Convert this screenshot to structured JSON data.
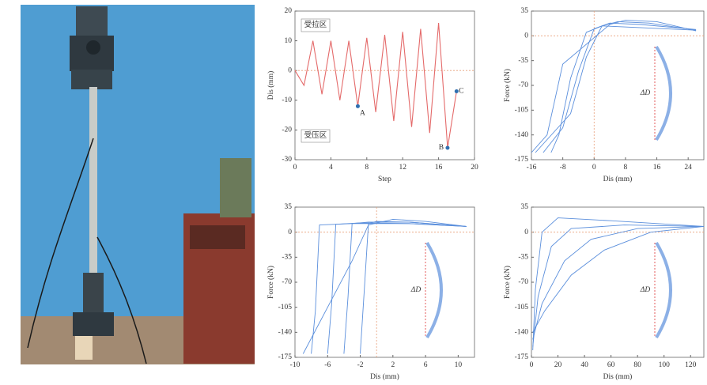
{
  "chart_data": [
    {
      "type": "line",
      "xlabel": "Step",
      "ylabel": "Dis (mm)",
      "color": "#e46a6a",
      "xlim": [
        0,
        20
      ],
      "xticks": [
        0,
        4,
        8,
        12,
        16,
        20
      ],
      "ylim": [
        -30,
        20
      ],
      "yticks": [
        -30,
        -20,
        -10,
        0,
        10,
        20
      ],
      "x": [
        0,
        1,
        2,
        3,
        4,
        5,
        6,
        7,
        8,
        9,
        10,
        11,
        12,
        13,
        14,
        15,
        16,
        17,
        18
      ],
      "values": [
        0,
        -5,
        10,
        -8,
        10,
        -10,
        10,
        -12,
        11,
        -14,
        12,
        -17,
        13,
        -19,
        14,
        -21,
        16,
        -26,
        -7
      ],
      "reference_lines": {
        "y": 0
      },
      "points": [
        {
          "label": "A",
          "x": 7,
          "y": -12
        },
        {
          "label": "B",
          "x": 17,
          "y": -26
        },
        {
          "label": "C",
          "x": 18,
          "y": -7
        }
      ],
      "point_color": "#2f6fb0",
      "annotations": [
        "受拉区",
        "受压区"
      ]
    },
    {
      "type": "hysteresis",
      "xlabel": "Dis (mm)",
      "ylabel": "Force (kN)",
      "color": "#5b8fdc",
      "xlim": [
        -16,
        28
      ],
      "xticks": [
        -16,
        -8,
        0,
        8,
        16,
        24
      ],
      "ylim": [
        -175,
        35
      ],
      "yticks": [
        -175,
        -140,
        -105,
        -70,
        -35,
        0,
        35
      ],
      "reference_lines": {
        "x": 0,
        "y": 0
      },
      "inset_label": "ΔD",
      "series": [
        {
          "x": [
            26,
            10,
            2,
            -2,
            -6,
            -9,
            -11
          ],
          "values": [
            8,
            12,
            14,
            5,
            -60,
            -140,
            -165
          ]
        },
        {
          "x": [
            26,
            12,
            4,
            0,
            -4,
            -8,
            -13
          ],
          "values": [
            9,
            16,
            18,
            10,
            -50,
            -130,
            -165
          ]
        },
        {
          "x": [
            26,
            14,
            6,
            2,
            -2,
            -6,
            -15
          ],
          "values": [
            8,
            18,
            20,
            14,
            -30,
            -110,
            -165
          ]
        },
        {
          "x": [
            26,
            16,
            8,
            4,
            -8,
            -12,
            -16
          ],
          "values": [
            7,
            20,
            22,
            16,
            -40,
            -140,
            -165
          ]
        }
      ]
    },
    {
      "type": "hysteresis",
      "xlabel": "Dis (mm)",
      "ylabel": "Force (kN)",
      "color": "#5b8fdc",
      "xlim": [
        -10,
        12
      ],
      "xticks": [
        -10,
        -6,
        -2,
        2,
        6,
        10
      ],
      "ylim": [
        -175,
        35
      ],
      "yticks": [
        -175,
        -140,
        -105,
        -70,
        -35,
        0,
        35
      ],
      "reference_lines": {
        "x": 0,
        "y": 0
      },
      "inset_label": "ΔD",
      "series": [
        {
          "x": [
            11,
            4,
            0,
            -1,
            -1.5,
            -2
          ],
          "values": [
            8,
            14,
            15,
            12,
            -80,
            -170
          ]
        },
        {
          "x": [
            11,
            4,
            -1,
            -3,
            -3.5,
            -4
          ],
          "values": [
            8,
            14,
            14,
            12,
            -90,
            -170
          ]
        },
        {
          "x": [
            11,
            4,
            -2,
            -5,
            -5.5,
            -6
          ],
          "values": [
            8,
            12,
            13,
            11,
            -100,
            -170
          ]
        },
        {
          "x": [
            11,
            4,
            -3,
            -7,
            -7.5,
            -8
          ],
          "values": [
            8,
            12,
            12,
            10,
            -110,
            -170
          ]
        },
        {
          "x": [
            11,
            6,
            2,
            -1,
            -3,
            -9
          ],
          "values": [
            8,
            15,
            18,
            10,
            -40,
            -170
          ]
        }
      ]
    },
    {
      "type": "hysteresis",
      "xlabel": "Dis (mm)",
      "ylabel": "Force (kN)",
      "color": "#5b8fdc",
      "xlim": [
        0,
        130
      ],
      "xticks": [
        0,
        20,
        40,
        60,
        80,
        100,
        120
      ],
      "ylim": [
        -175,
        35
      ],
      "yticks": [
        -175,
        -140,
        -105,
        -70,
        -35,
        0,
        35
      ],
      "reference_lines": {
        "y": 0
      },
      "inset_label": "ΔD",
      "series": [
        {
          "x": [
            1,
            3,
            8,
            20,
            60,
            130
          ],
          "values": [
            -165,
            -80,
            0,
            20,
            16,
            8
          ]
        },
        {
          "x": [
            1,
            5,
            15,
            30,
            70,
            130
          ],
          "values": [
            -160,
            -90,
            -20,
            5,
            10,
            8
          ]
        },
        {
          "x": [
            1,
            8,
            25,
            45,
            80,
            130
          ],
          "values": [
            -150,
            -100,
            -40,
            -10,
            5,
            8
          ]
        },
        {
          "x": [
            1,
            10,
            30,
            55,
            90,
            130
          ],
          "values": [
            -140,
            -110,
            -60,
            -25,
            0,
            8
          ]
        }
      ]
    }
  ]
}
